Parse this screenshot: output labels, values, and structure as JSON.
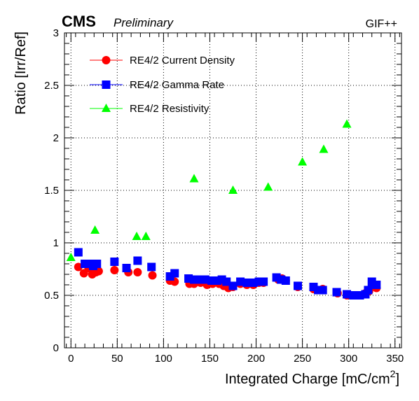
{
  "header": {
    "experiment": "CMS",
    "status": "Preliminary",
    "facility": "GIF++"
  },
  "chart_data": {
    "type": "scatter",
    "xlabel": "Integrated Charge [mC/cm",
    "xlabel_sup": "2",
    "xlabel_suffix": "]",
    "ylabel": "Ratio [Irr/Ref]",
    "xlim": [
      -7,
      357
    ],
    "ylim": [
      0,
      3
    ],
    "xticks": [
      0,
      50,
      100,
      150,
      200,
      250,
      300,
      350
    ],
    "yticks": [
      0,
      0.5,
      1,
      1.5,
      2,
      2.5,
      3
    ],
    "ytick_labels": [
      "0",
      "0.5",
      "1",
      "1.5",
      "2",
      "2.5",
      "3"
    ],
    "grid": true,
    "legend_position": "top-left",
    "series": [
      {
        "name": "RE4/2 Current Density",
        "marker": "circle",
        "color": "#ff0000",
        "x": [
          8,
          14,
          19,
          23,
          27,
          30,
          47,
          62,
          72,
          88,
          107,
          112,
          128,
          133,
          140,
          147,
          153,
          160,
          165,
          170,
          175,
          183,
          190,
          197,
          203,
          208,
          224,
          228,
          232,
          245,
          262,
          268,
          272,
          288,
          298,
          305,
          312,
          318,
          322,
          326,
          330
        ],
        "y": [
          0.77,
          0.71,
          0.76,
          0.7,
          0.72,
          0.73,
          0.74,
          0.72,
          0.72,
          0.69,
          0.64,
          0.63,
          0.61,
          0.61,
          0.62,
          0.6,
          0.61,
          0.61,
          0.59,
          0.57,
          0.58,
          0.61,
          0.6,
          0.6,
          0.62,
          0.62,
          0.65,
          0.66,
          0.64,
          0.58,
          0.56,
          0.55,
          0.56,
          0.52,
          0.5,
          0.5,
          0.5,
          0.52,
          0.54,
          0.59,
          0.57
        ]
      },
      {
        "name": "RE4/2 Gamma Rate",
        "marker": "square",
        "color": "#0000ff",
        "x": [
          8,
          15,
          20,
          24,
          28,
          47,
          60,
          72,
          87,
          107,
          112,
          127,
          133,
          138,
          145,
          152,
          158,
          163,
          168,
          175,
          183,
          190,
          197,
          203,
          208,
          222,
          227,
          232,
          245,
          262,
          267,
          272,
          287,
          298,
          305,
          312,
          318,
          321,
          325,
          330
        ],
        "y": [
          0.91,
          0.8,
          0.8,
          0.78,
          0.8,
          0.82,
          0.76,
          0.83,
          0.77,
          0.68,
          0.71,
          0.66,
          0.65,
          0.65,
          0.65,
          0.64,
          0.64,
          0.65,
          0.63,
          0.59,
          0.63,
          0.62,
          0.62,
          0.63,
          0.63,
          0.67,
          0.65,
          0.64,
          0.59,
          0.58,
          0.55,
          0.55,
          0.53,
          0.51,
          0.5,
          0.5,
          0.51,
          0.55,
          0.63,
          0.6
        ]
      },
      {
        "name": "RE4/2 Resistivity",
        "marker": "triangle",
        "color": "#00ff00",
        "x": [
          0,
          26,
          71,
          81,
          133,
          175,
          213,
          250,
          273,
          298
        ],
        "y": [
          0.86,
          1.12,
          1.06,
          1.06,
          1.61,
          1.5,
          1.53,
          1.77,
          1.89,
          2.13
        ]
      }
    ]
  }
}
